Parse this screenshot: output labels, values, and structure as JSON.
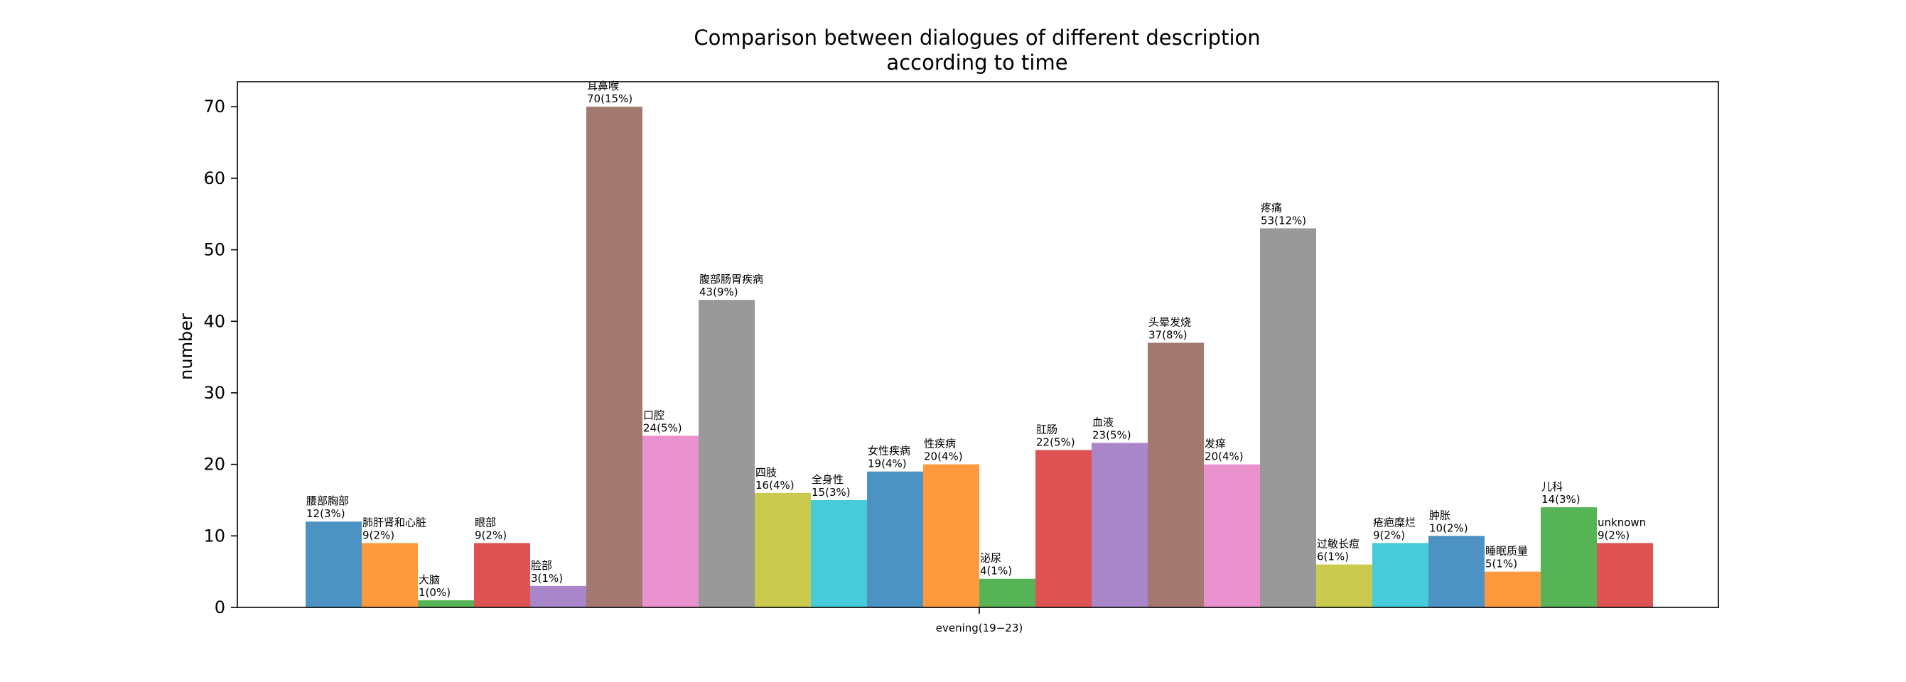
{
  "chart_data": {
    "type": "bar",
    "title_lines": [
      "Comparison between dialogues of different description",
      "according to time"
    ],
    "xlabel": "",
    "ylabel": "number",
    "categories": [
      "evening(19−23)"
    ],
    "ylim": [
      0,
      73.5
    ],
    "yticks": [
      0,
      10,
      20,
      30,
      40,
      50,
      60,
      70
    ],
    "grid": false,
    "series": [
      {
        "name": "腰部胸部",
        "value": 12,
        "label": "12(3%)",
        "color": "#1f77b4"
      },
      {
        "name": "肺肝肾和心脏",
        "value": 9,
        "label": "9(2%)",
        "color": "#ff7f0e"
      },
      {
        "name": "大脑",
        "value": 1,
        "label": "1(0%)",
        "color": "#2ca02c"
      },
      {
        "name": "眼部",
        "value": 9,
        "label": "9(2%)",
        "color": "#d62728"
      },
      {
        "name": "脸部",
        "value": 3,
        "label": "3(1%)",
        "color": "#9467bd"
      },
      {
        "name": "耳鼻喉",
        "value": 70,
        "label": "70(15%)",
        "color": "#8c564b"
      },
      {
        "name": "口腔",
        "value": 24,
        "label": "24(5%)",
        "color": "#e377c2"
      },
      {
        "name": "腹部肠胃疾病",
        "value": 43,
        "label": "43(9%)",
        "color": "#7f7f7f"
      },
      {
        "name": "四肢",
        "value": 16,
        "label": "16(4%)",
        "color": "#bcbd22"
      },
      {
        "name": "全身性",
        "value": 15,
        "label": "15(3%)",
        "color": "#17becf"
      },
      {
        "name": "女性疾病",
        "value": 19,
        "label": "19(4%)",
        "color": "#1f77b4"
      },
      {
        "name": "性疾病",
        "value": 20,
        "label": "20(4%)",
        "color": "#ff7f0e"
      },
      {
        "name": "泌尿",
        "value": 4,
        "label": "4(1%)",
        "color": "#2ca02c"
      },
      {
        "name": "肛肠",
        "value": 22,
        "label": "22(5%)",
        "color": "#d62728"
      },
      {
        "name": "血液",
        "value": 23,
        "label": "23(5%)",
        "color": "#9467bd"
      },
      {
        "name": "头晕发烧",
        "value": 37,
        "label": "37(8%)",
        "color": "#8c564b"
      },
      {
        "name": "发痒",
        "value": 20,
        "label": "20(4%)",
        "color": "#e377c2"
      },
      {
        "name": "疼痛",
        "value": 53,
        "label": "53(12%)",
        "color": "#7f7f7f"
      },
      {
        "name": "过敏长痘",
        "value": 6,
        "label": "6(1%)",
        "color": "#bcbd22"
      },
      {
        "name": "疮疤糜烂",
        "value": 9,
        "label": "9(2%)",
        "color": "#17becf"
      },
      {
        "name": "肿胀",
        "value": 10,
        "label": "10(2%)",
        "color": "#1f77b4"
      },
      {
        "name": "睡眠质量",
        "value": 5,
        "label": "5(1%)",
        "color": "#ff7f0e"
      },
      {
        "name": "儿科",
        "value": 14,
        "label": "14(3%)",
        "color": "#2ca02c"
      },
      {
        "name": "unknown",
        "value": 9,
        "label": "9(2%)",
        "color": "#d62728"
      }
    ]
  }
}
